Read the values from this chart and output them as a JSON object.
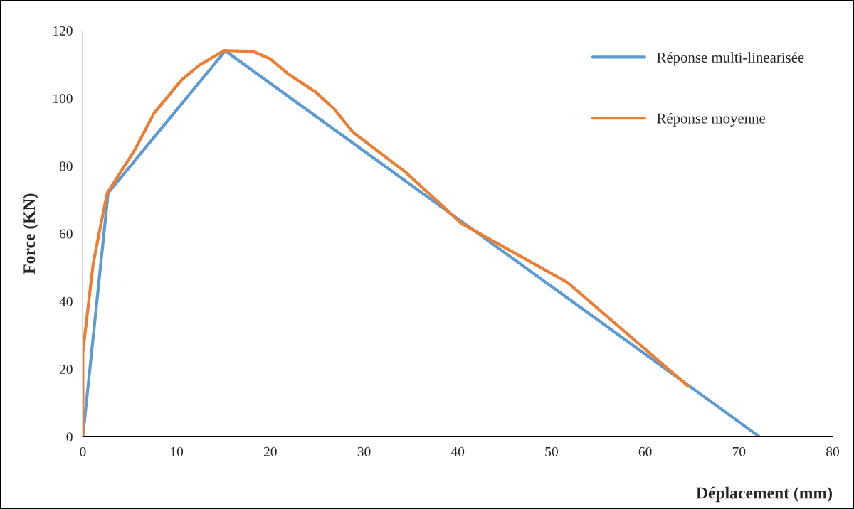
{
  "chart_data": {
    "type": "line",
    "xlabel": "Déplacement (mm)",
    "ylabel": "Force (KN)",
    "xlim": [
      0,
      80
    ],
    "xticks": [
      0,
      10,
      20,
      30,
      40,
      50,
      60,
      70,
      80
    ],
    "ylim": [
      0,
      120
    ],
    "yticks": [
      0,
      20,
      40,
      60,
      80,
      100,
      120
    ],
    "grid": false,
    "legend": "top right",
    "marker": "none",
    "line_style": "solid",
    "series": [
      {
        "name": "Réponse multi-linearisée",
        "color": "#5b9bd5",
        "x": [
          0,
          2.7,
          15.2,
          72.2
        ],
        "values": [
          0,
          72,
          114,
          0
        ]
      },
      {
        "name": "Réponse moyenne",
        "color": "#ed7d31",
        "x": [
          0,
          0,
          1.1,
          1.8,
          2.6,
          5.5,
          7.6,
          10.5,
          12.4,
          15.1,
          18.2,
          20,
          22,
          24.8,
          26.8,
          28.8,
          34.5,
          40.4,
          51.7,
          64.6
        ],
        "values": [
          0,
          25,
          51,
          61,
          72,
          84.5,
          95.6,
          105.3,
          109.7,
          114.1,
          113.8,
          111.6,
          107,
          101.9,
          96.9,
          90,
          78,
          63,
          45.6,
          14.9
        ]
      }
    ]
  }
}
